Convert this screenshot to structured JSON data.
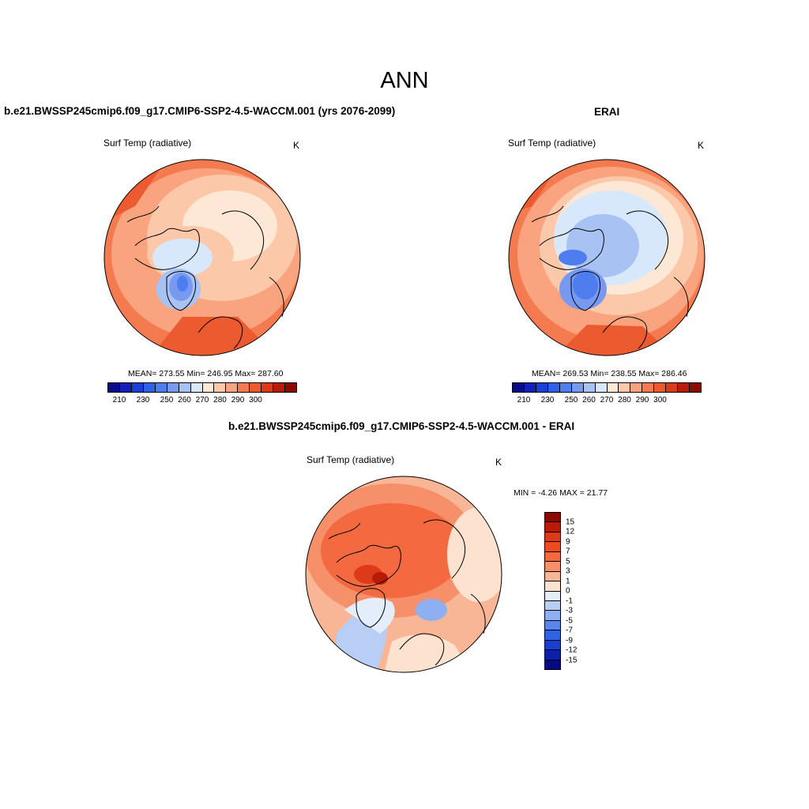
{
  "title": "ANN",
  "panels": {
    "model": {
      "title": "b.e21.BWSSP245cmip6.f09_g17.CMIP6-SSP2-4.5-WACCM.001 (yrs 2076-2099)",
      "variable": "Surf Temp (radiative)",
      "units": "K",
      "stats": "MEAN= 273.55  Min= 246.95  Max= 287.60"
    },
    "obs": {
      "title": "ERAI",
      "variable": "Surf Temp (radiative)",
      "units": "K",
      "stats": "MEAN= 269.53  Min= 238.55  Max= 286.46"
    },
    "diff": {
      "title": "b.e21.BWSSP245cmip6.f09_g17.CMIP6-SSP2-4.5-WACCM.001 - ERAI",
      "variable": "Surf Temp (radiative)",
      "units": "K",
      "stats": "MIN =  -4.26 MAX =  21.77"
    }
  },
  "abs_colorbar": {
    "tick_labels": [
      "210",
      "230",
      "250",
      "260",
      "270",
      "280",
      "290",
      "300"
    ],
    "colors": [
      "#0a0a8c",
      "#1020b8",
      "#1c3ed8",
      "#3060e8",
      "#4e7df0",
      "#7799f0",
      "#a9c2f4",
      "#d8e8fb",
      "#fde8d6",
      "#fcc8aa",
      "#f9a47e",
      "#f47a50",
      "#ec5a30",
      "#dc3a18",
      "#b81c08",
      "#8a0a00"
    ]
  },
  "diff_colorbar": {
    "tick_labels": [
      "15",
      "12",
      "9",
      "7",
      "5",
      "3",
      "1",
      "0",
      "-1",
      "-3",
      "-5",
      "-7",
      "-9",
      "-12",
      "-15"
    ],
    "colors": [
      "#8a0a00",
      "#b81c08",
      "#dc3a18",
      "#f04a20",
      "#f46a40",
      "#f6906a",
      "#f9b696",
      "#fde2d0",
      "#e4eefb",
      "#b8cef5",
      "#8eb0f2",
      "#5a86ec",
      "#3262e4",
      "#1a3ed0",
      "#0a20a8",
      "#060a80"
    ]
  }
}
